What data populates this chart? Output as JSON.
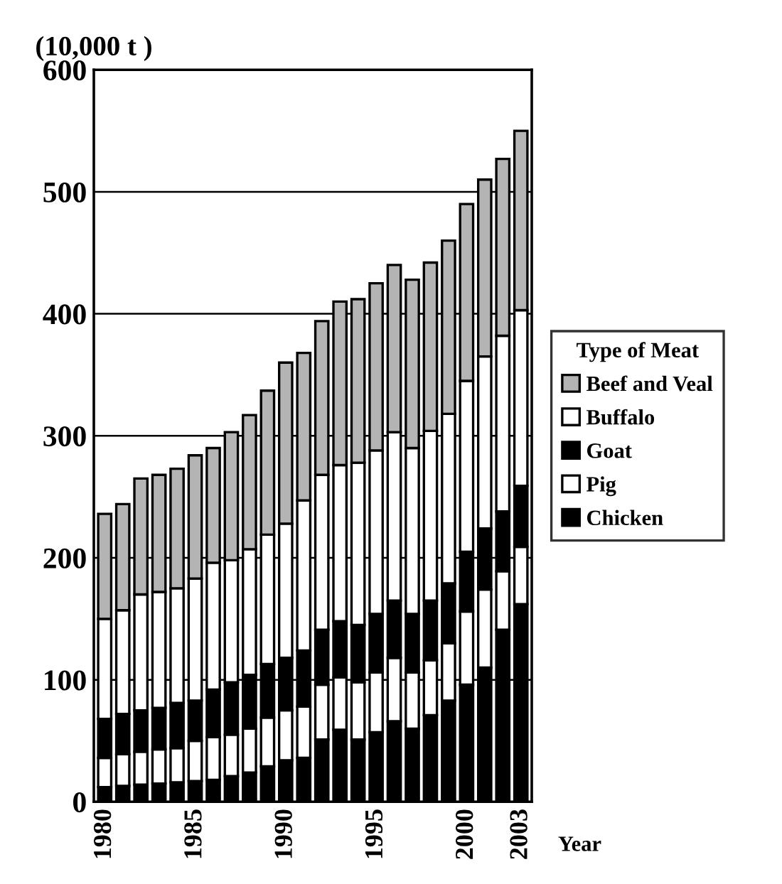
{
  "chart_data": {
    "type": "bar",
    "stacked": true,
    "ylabel": "(10,000 t )",
    "xlabel": "Year",
    "legend_title": "Type of Meat",
    "legend": "right",
    "grid": "y",
    "categories": [
      "1980",
      null,
      null,
      null,
      null,
      "1985",
      null,
      null,
      null,
      null,
      "1990",
      null,
      null,
      null,
      null,
      "1995",
      null,
      null,
      null,
      null,
      "2000",
      null,
      null,
      "2003"
    ],
    "ylim": [
      0,
      600
    ],
    "yticks": [
      0,
      100,
      200,
      300,
      400,
      500,
      600
    ],
    "series": [
      {
        "name": "Chicken",
        "color": "#000000",
        "values": [
          12,
          13,
          14,
          15,
          16,
          17,
          18,
          21,
          24,
          29,
          34,
          36,
          51,
          59,
          51,
          57,
          66,
          60,
          71,
          83,
          96,
          110,
          141,
          162
        ]
      },
      {
        "name": "Pig",
        "color": "#ffffff",
        "values": [
          24,
          26,
          27,
          28,
          28,
          33,
          35,
          34,
          36,
          40,
          41,
          42,
          45,
          43,
          47,
          49,
          52,
          46,
          45,
          47,
          60,
          64,
          48,
          47
        ]
      },
      {
        "name": "Goat",
        "color": "#000000",
        "values": [
          32,
          33,
          34,
          34,
          37,
          33,
          39,
          43,
          44,
          44,
          43,
          46,
          45,
          46,
          47,
          48,
          47,
          48,
          49,
          49,
          49,
          50,
          49,
          50
        ]
      },
      {
        "name": "Buffalo",
        "color": "#ffffff",
        "values": [
          82,
          85,
          95,
          95,
          94,
          100,
          104,
          100,
          103,
          106,
          110,
          123,
          127,
          128,
          133,
          134,
          138,
          136,
          139,
          139,
          140,
          141,
          144,
          144
        ]
      },
      {
        "name": "Beef and Veal",
        "color": "#b4b4b4",
        "values": [
          86,
          87,
          95,
          96,
          98,
          101,
          94,
          105,
          110,
          118,
          132,
          121,
          126,
          134,
          134,
          137,
          137,
          138,
          138,
          142,
          145,
          145,
          145,
          147
        ]
      }
    ]
  }
}
